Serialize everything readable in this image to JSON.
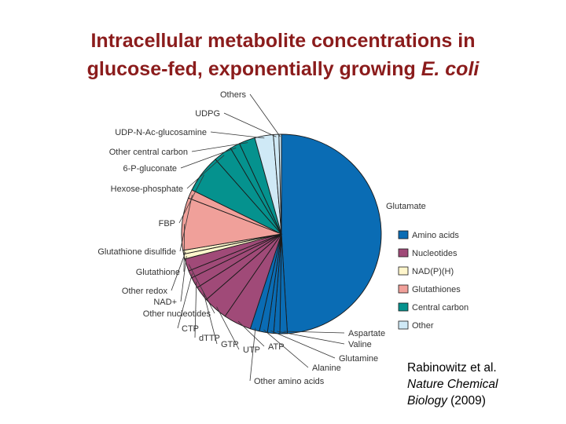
{
  "title": {
    "line1": "Intracellular metabolite concentrations in",
    "line2_prefix": "glucose-fed, exponentially growing ",
    "line2_italic": "E. coli"
  },
  "citation": {
    "line1": "Rabinowitz et al.",
    "line2": "Nature Chemical",
    "line3_italic": "Biology",
    "line3_rest": " (2009)"
  },
  "chart_data": {
    "type": "pie",
    "start": "12 o'clock",
    "direction": "clockwise",
    "slices": [
      {
        "label": "Glutamate",
        "value": 49,
        "group": "Amino acids"
      },
      {
        "label": "Aspartate",
        "value": 1.2,
        "group": "Amino acids"
      },
      {
        "label": "Valine",
        "value": 1.0,
        "group": "Amino acids"
      },
      {
        "label": "Glutamine",
        "value": 1.0,
        "group": "Amino acids"
      },
      {
        "label": "Alanine",
        "value": 1.3,
        "group": "Amino acids"
      },
      {
        "label": "Other amino acids",
        "value": 1.5,
        "group": "Amino acids"
      },
      {
        "label": "ATP",
        "value": 4.5,
        "group": "Nucleotides"
      },
      {
        "label": "UTP",
        "value": 4.0,
        "group": "Nucleotides"
      },
      {
        "label": "GTP",
        "value": 2.4,
        "group": "Nucleotides"
      },
      {
        "label": "dTTP",
        "value": 1.8,
        "group": "Nucleotides"
      },
      {
        "label": "CTP",
        "value": 1.2,
        "group": "Nucleotides"
      },
      {
        "label": "Other nucleotides",
        "value": 2.0,
        "group": "Nucleotides"
      },
      {
        "label": "NAD+",
        "value": 0.8,
        "group": "NAD(P)(H)"
      },
      {
        "label": "Other redox",
        "value": 0.6,
        "group": "NAD(P)(H)"
      },
      {
        "label": "Glutathione",
        "value": 8.5,
        "group": "Glutathiones"
      },
      {
        "label": "Glutathione disulfide",
        "value": 1.4,
        "group": "Glutathiones"
      },
      {
        "label": "FBP",
        "value": 6.2,
        "group": "Central carbon"
      },
      {
        "label": "Hexose-phosphate",
        "value": 3.0,
        "group": "Central carbon"
      },
      {
        "label": "6-P-gluconate",
        "value": 1.6,
        "group": "Central carbon"
      },
      {
        "label": "Other central carbon",
        "value": 2.6,
        "group": "Central carbon"
      },
      {
        "label": "UDP-N-Ac-glucosamine",
        "value": 3.0,
        "group": "Other"
      },
      {
        "label": "UDPG",
        "value": 0.9,
        "group": "Other"
      },
      {
        "label": "Others",
        "value": 0.4,
        "group": "Other"
      }
    ],
    "legend": {
      "placement": "right",
      "entries": [
        {
          "label": "Amino acids",
          "color": "#0a6cb4"
        },
        {
          "label": "Nucleotides",
          "color": "#a04a78"
        },
        {
          "label": "NAD(P)(H)",
          "color": "#fff6cc"
        },
        {
          "label": "Glutathiones",
          "color": "#f0a09a"
        },
        {
          "label": "Central carbon",
          "color": "#05928e"
        },
        {
          "label": "Other",
          "color": "#cfe9f6"
        }
      ]
    }
  }
}
